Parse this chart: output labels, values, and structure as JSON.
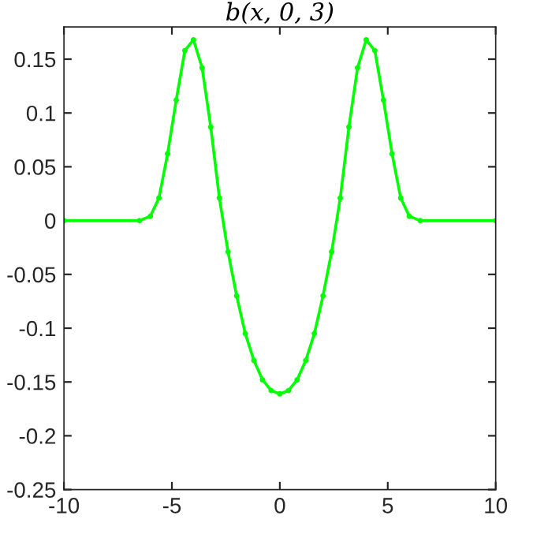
{
  "chart_data": {
    "type": "line",
    "title": "b(x, 0, 3)",
    "x": [
      -10,
      -6.5,
      -6.0,
      -5.6,
      -5.2,
      -4.8,
      -4.4,
      -4.0,
      -3.6,
      -3.2,
      -2.8,
      -2.4,
      -2.0,
      -1.6,
      -1.2,
      -0.8,
      -0.4,
      0,
      0.4,
      0.8,
      1.2,
      1.6,
      2.0,
      2.4,
      2.8,
      3.2,
      3.6,
      4.0,
      4.4,
      4.8,
      5.2,
      5.6,
      6.0,
      6.5,
      10
    ],
    "series": [
      {
        "color": "#00ff00",
        "values": [
          0,
          0,
          0.004,
          0.021,
          0.062,
          0.112,
          0.158,
          0.168,
          0.142,
          0.087,
          0.021,
          -0.029,
          -0.07,
          -0.105,
          -0.13,
          -0.148,
          -0.158,
          -0.161,
          -0.158,
          -0.148,
          -0.13,
          -0.105,
          -0.07,
          -0.029,
          0.021,
          0.087,
          0.142,
          0.168,
          0.158,
          0.112,
          0.062,
          0.021,
          0.004,
          0,
          0
        ]
      }
    ],
    "xlim": [
      -10,
      10
    ],
    "xticks": [
      -10,
      -5,
      0,
      5,
      10
    ],
    "ylim": [
      -0.25,
      0.18
    ],
    "yticks": [
      {
        "value": -0.25,
        "label": "-0.25"
      },
      {
        "value": -0.2,
        "label": "-0.2"
      },
      {
        "value": -0.15,
        "label": "-0.15"
      },
      {
        "value": -0.1,
        "label": "-0.1"
      },
      {
        "value": -0.05,
        "label": "-0.05"
      },
      0,
      0.05,
      0.1,
      0.15
    ],
    "grid": false,
    "legend": false,
    "marker": "circle",
    "line_style": "solid"
  }
}
